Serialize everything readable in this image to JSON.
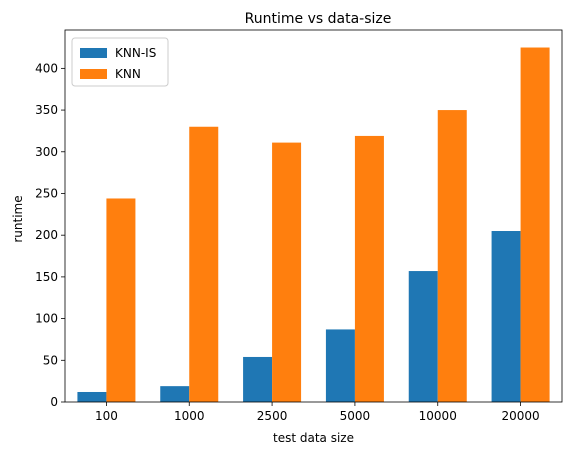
{
  "chart_data": {
    "type": "bar",
    "title": "Runtime vs data-size",
    "xlabel": "test data size",
    "ylabel": "runtime",
    "categories": [
      "100",
      "1000",
      "2500",
      "5000",
      "10000",
      "20000"
    ],
    "series": [
      {
        "name": "KNN-IS",
        "color": "#1f77b4",
        "values": [
          12,
          19,
          54,
          87,
          157,
          205
        ]
      },
      {
        "name": "KNN",
        "color": "#ff7f0e",
        "values": [
          244,
          330,
          311,
          319,
          350,
          425
        ]
      }
    ],
    "ylim": [
      0,
      446
    ],
    "yticks": [
      0,
      50,
      100,
      150,
      200,
      250,
      300,
      350,
      400
    ],
    "grid": false,
    "legend_position": "top-left"
  }
}
